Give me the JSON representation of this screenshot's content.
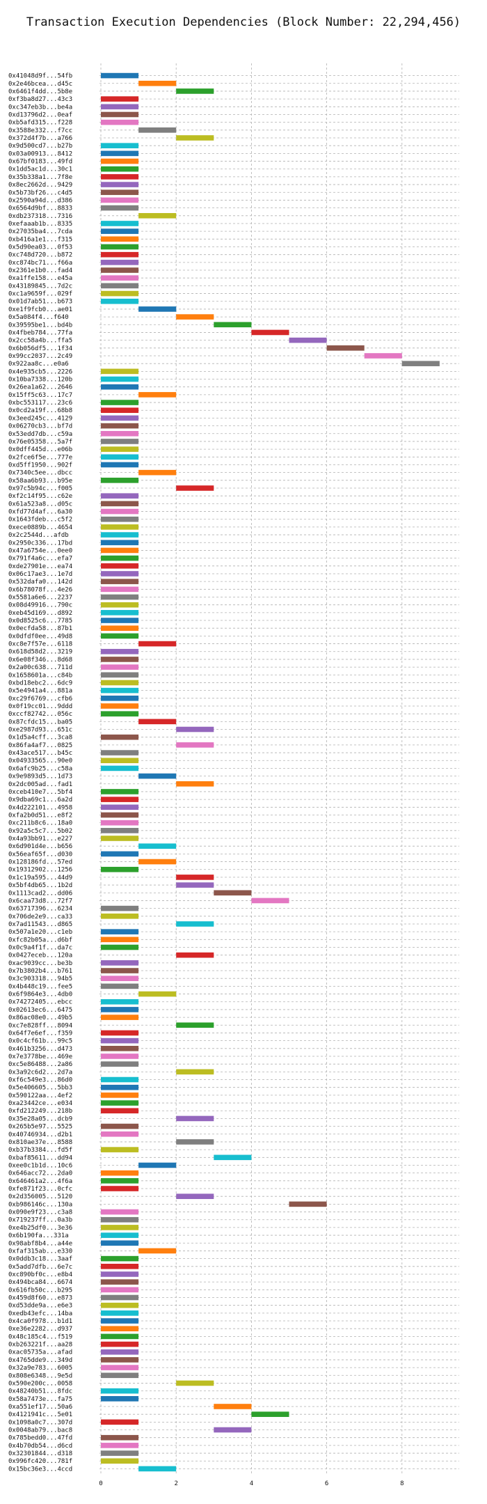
{
  "chart_data": {
    "type": "bar",
    "orientation": "horizontal-gantt",
    "title": "Transaction Execution Dependencies (Block Number: 22,294,456)",
    "xlabel": "",
    "ylabel": "",
    "xlim": [
      0,
      9.5
    ],
    "xticks": [
      0,
      2,
      4,
      6,
      8
    ],
    "grid": true,
    "bar_duration": 1,
    "palette": [
      "#1f77b4",
      "#ff7f0e",
      "#2ca02c",
      "#d62728",
      "#9467bd",
      "#8c564b",
      "#e377c2",
      "#7f7f7f",
      "#bcbd22",
      "#17becf"
    ],
    "transactions": [
      {
        "label": "0x41048d9f...54fb",
        "start": 0
      },
      {
        "label": "0x2e46bcea...d45c",
        "start": 1
      },
      {
        "label": "0x6461f4dd...5b8e",
        "start": 2
      },
      {
        "label": "0xf3ba8d27...43c3",
        "start": 0
      },
      {
        "label": "0xc347eb3b...be4a",
        "start": 0
      },
      {
        "label": "0xd13796d2...0eaf",
        "start": 0
      },
      {
        "label": "0xb5afd315...f228",
        "start": 0
      },
      {
        "label": "0x3588e332...f7cc",
        "start": 1
      },
      {
        "label": "0x372d4f7b...a766",
        "start": 2
      },
      {
        "label": "0x9d500cd7...b27b",
        "start": 0
      },
      {
        "label": "0x03a00913...8412",
        "start": 0
      },
      {
        "label": "0x67bf0183...49fd",
        "start": 0
      },
      {
        "label": "0x1dd5ac1d...30c1",
        "start": 0
      },
      {
        "label": "0x35b338a1...7f8e",
        "start": 0
      },
      {
        "label": "0x8ec2662d...9429",
        "start": 0
      },
      {
        "label": "0x5b73bf26...c4d5",
        "start": 0
      },
      {
        "label": "0x2590a94d...d386",
        "start": 0
      },
      {
        "label": "0x6564d9bf...8833",
        "start": 0
      },
      {
        "label": "0xdb237318...7316",
        "start": 1
      },
      {
        "label": "0xefaaab1b...8335",
        "start": 0
      },
      {
        "label": "0x27035ba4...7cda",
        "start": 0
      },
      {
        "label": "0xb416a1e1...f315",
        "start": 0
      },
      {
        "label": "0x5d90ea03...0f53",
        "start": 0
      },
      {
        "label": "0xc748d720...b872",
        "start": 0
      },
      {
        "label": "0xc874bc71...f66a",
        "start": 0
      },
      {
        "label": "0x2361e1b0...fad4",
        "start": 0
      },
      {
        "label": "0xa1ffe158...e45a",
        "start": 0
      },
      {
        "label": "0x43189845...7d2c",
        "start": 0
      },
      {
        "label": "0xc1a9659f...029f",
        "start": 0
      },
      {
        "label": "0x01d7ab51...b673",
        "start": 0
      },
      {
        "label": "0xe1f9fcb0...ae01",
        "start": 1
      },
      {
        "label": "0x5a084f4...f640",
        "start": 2
      },
      {
        "label": "0x39595be1...bd4b",
        "start": 3
      },
      {
        "label": "0x4fbeb784...77fa",
        "start": 4
      },
      {
        "label": "0x2cc58a4b...ffa5",
        "start": 5
      },
      {
        "label": "0x6b056df5...1f34",
        "start": 6
      },
      {
        "label": "0x99cc2037...2c49",
        "start": 7
      },
      {
        "label": "0x922aa8c...e0a6",
        "start": 8
      },
      {
        "label": "0x4e935cb5...2226",
        "start": 0
      },
      {
        "label": "0x10ba7338...120b",
        "start": 0
      },
      {
        "label": "0x26ea1a62...2646",
        "start": 0
      },
      {
        "label": "0x15ff5c63...17c7",
        "start": 1
      },
      {
        "label": "0xbc553117...23c6",
        "start": 0
      },
      {
        "label": "0x0cd2a19f...68b8",
        "start": 0
      },
      {
        "label": "0x3eed245c...4129",
        "start": 0
      },
      {
        "label": "0x06270cb3...bf7d",
        "start": 0
      },
      {
        "label": "0x53edd7db...c59a",
        "start": 0
      },
      {
        "label": "0x76e05358...5a7f",
        "start": 0
      },
      {
        "label": "0x0dff445d...e06b",
        "start": 0
      },
      {
        "label": "0x2fce6f5e...777e",
        "start": 0
      },
      {
        "label": "0xd5ff1950...902f",
        "start": 0
      },
      {
        "label": "0x7340c5ee...dbcc",
        "start": 1
      },
      {
        "label": "0x58aa6b93...b95e",
        "start": 0
      },
      {
        "label": "0x97c5b94c...f005",
        "start": 2
      },
      {
        "label": "0xf2c14f95...c62e",
        "start": 0
      },
      {
        "label": "0x61a523a8...d05c",
        "start": 0
      },
      {
        "label": "0xfd77d4af...6a30",
        "start": 0
      },
      {
        "label": "0x1643fdeb...c5f2",
        "start": 0
      },
      {
        "label": "0xece0889b...4654",
        "start": 0
      },
      {
        "label": "0x2c2544d...afdb",
        "start": 0
      },
      {
        "label": "0x2950c336...17bd",
        "start": 0
      },
      {
        "label": "0x47a6754e...0ee0",
        "start": 0
      },
      {
        "label": "0x791f4a6c...efa7",
        "start": 0
      },
      {
        "label": "0xde27901e...ea74",
        "start": 0
      },
      {
        "label": "0x06c17ae3...1e7d",
        "start": 0
      },
      {
        "label": "0x532dafa0...142d",
        "start": 0
      },
      {
        "label": "0x6b78078f...4e26",
        "start": 0
      },
      {
        "label": "0x5581a6e6...2237",
        "start": 0
      },
      {
        "label": "0x08d49916...790c",
        "start": 0
      },
      {
        "label": "0xeb45d169...d892",
        "start": 0
      },
      {
        "label": "0x0d8525c6...7785",
        "start": 0
      },
      {
        "label": "0x0ecfda58...87b1",
        "start": 0
      },
      {
        "label": "0x0dfdf0ee...49d8",
        "start": 0
      },
      {
        "label": "0xc8e7f57e...6118",
        "start": 1
      },
      {
        "label": "0x618d58d2...3219",
        "start": 0
      },
      {
        "label": "0x6e08f346...8d68",
        "start": 0
      },
      {
        "label": "0x2a00c638...711d",
        "start": 0
      },
      {
        "label": "0x1658601a...c84b",
        "start": 0
      },
      {
        "label": "0xbd18ebc2...6dc9",
        "start": 0
      },
      {
        "label": "0x5e4941a4...881a",
        "start": 0
      },
      {
        "label": "0xc29f6769...cfb6",
        "start": 0
      },
      {
        "label": "0x0f19cc01...9ddd",
        "start": 0
      },
      {
        "label": "0xccf82742...056c",
        "start": 0
      },
      {
        "label": "0x87cfdc15...ba05",
        "start": 1
      },
      {
        "label": "0xe2987d93...651c",
        "start": 2
      },
      {
        "label": "0x1d5a4cff...3ca8",
        "start": 0
      },
      {
        "label": "0x86fa4af7...0825",
        "start": 2
      },
      {
        "label": "0x43ace517...b45c",
        "start": 0
      },
      {
        "label": "0x04933565...90e0",
        "start": 0
      },
      {
        "label": "0x6afc9b25...c58a",
        "start": 0
      },
      {
        "label": "0x9e9893d5...1d73",
        "start": 1
      },
      {
        "label": "0x2dc005ad...fad1",
        "start": 2
      },
      {
        "label": "0xceb410e7...5bf4",
        "start": 0
      },
      {
        "label": "0x9dba69c1...6a2d",
        "start": 0
      },
      {
        "label": "0x4d222101...4958",
        "start": 0
      },
      {
        "label": "0xfa2b0d51...e8f2",
        "start": 0
      },
      {
        "label": "0xc211b8c6...18a0",
        "start": 0
      },
      {
        "label": "0x92a5c5c7...5b02",
        "start": 0
      },
      {
        "label": "0x4a93bb91...e227",
        "start": 0
      },
      {
        "label": "0x6d901d4e...b656",
        "start": 1
      },
      {
        "label": "0x56eaf65f...d030",
        "start": 0
      },
      {
        "label": "0x128186fd...57ed",
        "start": 1
      },
      {
        "label": "0x19312902...1256",
        "start": 0
      },
      {
        "label": "0x1c19a595...44d9",
        "start": 2
      },
      {
        "label": "0x5bf4db65...1b2d",
        "start": 2
      },
      {
        "label": "0x1113cad2...dd06",
        "start": 3
      },
      {
        "label": "0x6caa73d8...72f7",
        "start": 4
      },
      {
        "label": "0x63717396...6234",
        "start": 0
      },
      {
        "label": "0x706de2e9...ca33",
        "start": 0
      },
      {
        "label": "0x7ad11543...d865",
        "start": 2
      },
      {
        "label": "0x507a1e20...c1eb",
        "start": 0
      },
      {
        "label": "0xfc82b05a...d6bf",
        "start": 0
      },
      {
        "label": "0x0c9a4f1f...da7c",
        "start": 0
      },
      {
        "label": "0x0427eceb...120a",
        "start": 2
      },
      {
        "label": "0xac9039cc...be3b",
        "start": 0
      },
      {
        "label": "0x7b3802b4...b761",
        "start": 0
      },
      {
        "label": "0x3c903318...94b5",
        "start": 0
      },
      {
        "label": "0x4b448c19...fee5",
        "start": 0
      },
      {
        "label": "0x6f9864e3...4db0",
        "start": 1
      },
      {
        "label": "0x74272405...ebcc",
        "start": 0
      },
      {
        "label": "0x02613ec6...6475",
        "start": 0
      },
      {
        "label": "0x86ac08e0...49b5",
        "start": 0
      },
      {
        "label": "0xc7e828ff...8094",
        "start": 2
      },
      {
        "label": "0x64f7e6ef...f359",
        "start": 0
      },
      {
        "label": "0x0c4cf61b...99c5",
        "start": 0
      },
      {
        "label": "0x461b3256...d473",
        "start": 0
      },
      {
        "label": "0x7e3778be...469e",
        "start": 0
      },
      {
        "label": "0xc5e86488...2a86",
        "start": 0
      },
      {
        "label": "0x3a92c6d2...2d7a",
        "start": 2
      },
      {
        "label": "0xf6c549e3...86d0",
        "start": 0
      },
      {
        "label": "0x5e406605...5bb3",
        "start": 0
      },
      {
        "label": "0x590122aa...4ef2",
        "start": 0
      },
      {
        "label": "0xa23442ce...e034",
        "start": 0
      },
      {
        "label": "0xfd212249...218b",
        "start": 0
      },
      {
        "label": "0x35e28a05...dcb9",
        "start": 2
      },
      {
        "label": "0x265b5e97...5525",
        "start": 0
      },
      {
        "label": "0x40746934...d2b1",
        "start": 0
      },
      {
        "label": "0x810ae37e...8588",
        "start": 2
      },
      {
        "label": "0xb37b3384...fd5f",
        "start": 0
      },
      {
        "label": "0xbaf85611...dd94",
        "start": 3
      },
      {
        "label": "0xee0c1b1d...10c6",
        "start": 1
      },
      {
        "label": "0x646acc72...2da0",
        "start": 0
      },
      {
        "label": "0x646461a2...4f6a",
        "start": 0
      },
      {
        "label": "0xfe871f23...0cfc",
        "start": 0
      },
      {
        "label": "0x2d356005...5120",
        "start": 2
      },
      {
        "label": "0xb986146c...130a",
        "start": 5
      },
      {
        "label": "0x090e9f23...c3a8",
        "start": 0
      },
      {
        "label": "0x719237ff...0a3b",
        "start": 0
      },
      {
        "label": "0xe4b25df0...3e36",
        "start": 0
      },
      {
        "label": "0x6b190fa...331a",
        "start": 0
      },
      {
        "label": "0x98abf8b4...a44e",
        "start": 0
      },
      {
        "label": "0xfaf315ab...e330",
        "start": 1
      },
      {
        "label": "0x0ddb3c18...3aaf",
        "start": 0
      },
      {
        "label": "0x5add7dfb...6e7c",
        "start": 0
      },
      {
        "label": "0xc890bf0c...e8b4",
        "start": 0
      },
      {
        "label": "0x494bca84...6674",
        "start": 0
      },
      {
        "label": "0x616fb50c...b295",
        "start": 0
      },
      {
        "label": "0x459d8f60...e873",
        "start": 0
      },
      {
        "label": "0xd53dde9a...e6e3",
        "start": 0
      },
      {
        "label": "0xedb43efc...14ba",
        "start": 0
      },
      {
        "label": "0x4ca0f978...b1d1",
        "start": 0
      },
      {
        "label": "0xe36e2282...d937",
        "start": 0
      },
      {
        "label": "0x48c185c4...f519",
        "start": 0
      },
      {
        "label": "0xb263221f...aa28",
        "start": 0
      },
      {
        "label": "0xac05735a...afad",
        "start": 0
      },
      {
        "label": "0x4765dde9...349d",
        "start": 0
      },
      {
        "label": "0x32a9e783...6005",
        "start": 0
      },
      {
        "label": "0x808e6348...9e5d",
        "start": 0
      },
      {
        "label": "0x590e200c...0058",
        "start": 2
      },
      {
        "label": "0x48240b51...8fdc",
        "start": 0
      },
      {
        "label": "0x58a7473e...fa75",
        "start": 0
      },
      {
        "label": "0xa551ef17...50a6",
        "start": 3
      },
      {
        "label": "0x4121941c...5e01",
        "start": 4
      },
      {
        "label": "0x1098a0c7...307d",
        "start": 0
      },
      {
        "label": "0x0048ab79...bac8",
        "start": 3
      },
      {
        "label": "0x785bedd0...47fd",
        "start": 0
      },
      {
        "label": "0x4b70db54...d6cd",
        "start": 0
      },
      {
        "label": "0x32301844...d318",
        "start": 0
      },
      {
        "label": "0x996fc420...781f",
        "start": 0
      },
      {
        "label": "0x15bc36e3...4ccd",
        "start": 1
      }
    ]
  }
}
